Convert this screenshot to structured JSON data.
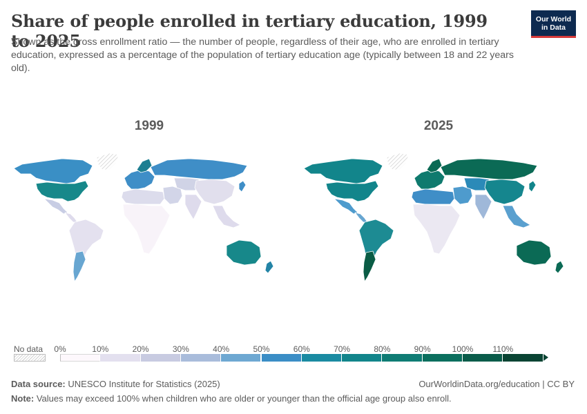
{
  "title": "Share of people enrolled in tertiary education, 1999 to 2025",
  "subtitle": "Shown as the gross enrollment ratio — the number of people, regardless of their age, who are enrolled in tertiary education, expressed as a percentage of the population of tertiary education age (typically between 18 and 22 years old).",
  "logo": {
    "line1": "Our World",
    "line2": "in Data"
  },
  "maps": [
    {
      "year": "1999",
      "region_colors": {
        "north_america": "#3a8fc5",
        "usa": "#17888a",
        "mexico": "#c8cde4",
        "central_america": "#dedbec",
        "south_america": "#e4e1ef",
        "argentina": "#68a6d1",
        "europe": "#3f8ec7",
        "russia": "#3f8ec7",
        "scandinavia": "#1e7f92",
        "middle_east": "#d2d5e8",
        "africa": "#f8f3f9",
        "north_africa": "#dcdcec",
        "central_asia": "#d0d3e6",
        "china": "#e1dfed",
        "india": "#dedbec",
        "southeast_asia": "#dedbec",
        "japan": "#3f8ec7",
        "australia": "#17888a",
        "new_zealand": "#2384a6",
        "greenland": "#e4e4e4"
      }
    },
    {
      "year": "2025",
      "region_colors": {
        "north_america": "#12858b",
        "usa": "#12858b",
        "mexico": "#4e9bcd",
        "central_america": "#68a6d1",
        "south_america": "#1d8b93",
        "argentina": "#0a5c45",
        "europe": "#0f7a6e",
        "russia": "#0b6a55",
        "scandinavia": "#0b6a55",
        "middle_east": "#4e9bcd",
        "africa": "#ebe8f2",
        "north_africa": "#3f8ec7",
        "central_asia": "#2b8ab8",
        "china": "#15868e",
        "india": "#9fb8d9",
        "southeast_asia": "#5aa0cf",
        "japan": "#12858b",
        "australia": "#0b6a55",
        "new_zealand": "#0b6a55",
        "greenland": "#e4e4e4"
      }
    }
  ],
  "legend": {
    "no_data_label": "No data",
    "ticks": [
      "0%",
      "10%",
      "20%",
      "30%",
      "40%",
      "50%",
      "60%",
      "70%",
      "80%",
      "90%",
      "100%",
      "110%"
    ],
    "colors": [
      "#fdf8fc",
      "#e3e0ef",
      "#c8cbe1",
      "#a9bcdb",
      "#6ea8d2",
      "#3b8ec6",
      "#1a8ba2",
      "#12858b",
      "#0f7c74",
      "#0b6f5e",
      "#0a5c4a",
      "#0a4433"
    ]
  },
  "footer": {
    "source_label": "Data source:",
    "source": "UNESCO Institute for Statistics (2025)",
    "url": "OurWorldinData.org/education | CC BY",
    "note_label": "Note:",
    "note": "Values may exceed 100% when children who are older or younger than the official age group also enroll."
  }
}
